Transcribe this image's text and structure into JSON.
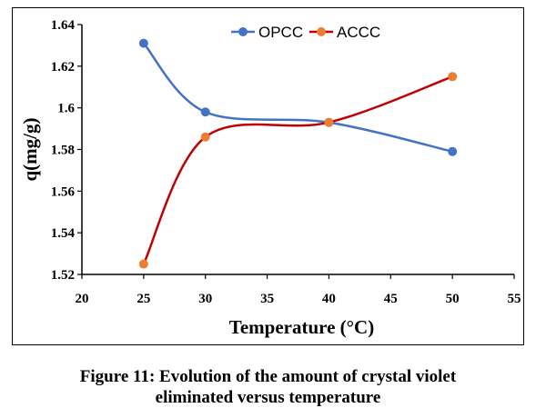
{
  "chart_data": {
    "type": "line",
    "x": [
      25,
      30,
      40,
      50
    ],
    "series": [
      {
        "name": "OPCC",
        "color": "#4472C4",
        "values": [
          1.631,
          1.598,
          1.593,
          1.579
        ]
      },
      {
        "name": "ACCC",
        "color": "#C00000",
        "marker_color": "#ED7D31",
        "values": [
          1.525,
          1.586,
          1.593,
          1.615
        ]
      }
    ],
    "xlabel": "Temperature (°C)",
    "ylabel": "q(mg/g)",
    "xlim": [
      20,
      55
    ],
    "ylim": [
      1.52,
      1.64
    ],
    "xticks": [
      "20",
      "25",
      "30",
      "35",
      "40",
      "45",
      "50",
      "55"
    ],
    "yticks": [
      "1.52",
      "1.54",
      "1.56",
      "1.58",
      "1.6",
      "1.62",
      "1.64"
    ],
    "legend_position": "top-center",
    "grid": false,
    "smooth": true
  },
  "caption": {
    "line1": "Figure 11: Evolution of the amount of crystal violet",
    "line2": "eliminated versus temperature"
  }
}
